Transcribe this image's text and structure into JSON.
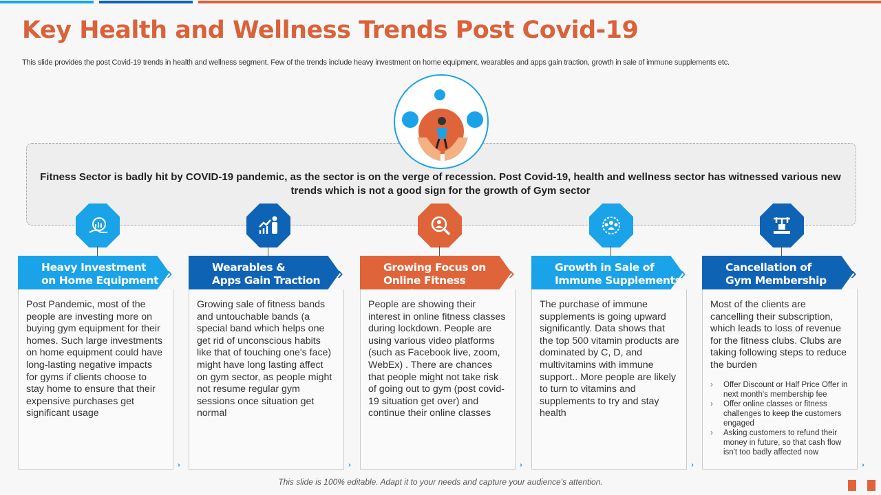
{
  "title": "Key Health and Wellness Trends Post Covid-19",
  "subtitle": "This slide provides the post Covid-19 trends in health and wellness segment. Few of the trends include heavy investment on home equipment, wearables and apps gain traction, growth in sale of immune supplements etc.",
  "center_text": "Fitness Sector is badly hit by COVID-19 pandemic, as the sector is on the verge of recession. Post Covid-19, health and wellness sector has witnessed various new trends which is not a good sign for the growth of Gym sector",
  "colors": {
    "light_blue": "#1aa3e8",
    "dark_blue": "#0f63b5",
    "orange": "#e0643a"
  },
  "trends": [
    {
      "title1": "Heavy Investment",
      "title2": "on Home Equipment",
      "icon": "hand-chart-icon",
      "color": "#1aa3e8",
      "body": "Post Pandemic, most of the people are investing more on buying gym equipment for their homes. Such large investments on home equipment could have long-lasting negative impacts for gyms if clients choose to stay home to ensure that their expensive purchases get significant usage"
    },
    {
      "title1": "Wearables &",
      "title2": "Apps Gain Traction",
      "icon": "growth-person-icon",
      "color": "#0f63b5",
      "body": "Growing sale of fitness bands and untouchable bands (a special band which helps one get rid of unconscious habits like that of touching one's face) might have long lasting affect on gym sector, as people might not resume regular gym sessions once situation get normal"
    },
    {
      "title1": "Growing Focus on",
      "title2": "Online Fitness Sessions",
      "icon": "search-person-icon",
      "color": "#e0643a",
      "body": "People are showing their interest in online fitness classes during lockdown. People are using various video platforms (such as Facebook live, zoom, WebEx) . There are chances that people might not take risk of going out to gym (post covid-19 situation get over) and continue their online classes"
    },
    {
      "title1": "Growth in Sale of",
      "title2": "Immune Supplements",
      "icon": "immune-group-icon",
      "color": "#1aa3e8",
      "body": "The purchase of immune supplements is going upward significantly. Data shows that the top 500 vitamin products are dominated by C, D, and multivitamins with immune support.. More people are likely to turn to vitamins and supplements to try and stay health"
    },
    {
      "title1": "Cancellation of",
      "title2": "Gym Membership",
      "icon": "gym-weights-icon",
      "color": "#0f63b5",
      "body": "Most of the clients are cancelling their subscription, which leads to loss of revenue for the fitness clubs. Clubs are taking following steps to reduce the burden",
      "bullets": [
        "Offer Discount or Half Price Offer in next month's membership fee",
        "Offer online classes or fitness challenges to keep the customers engaged",
        "Asking customers to refund their money in future, so that cash flow isn't too badly affected now"
      ]
    }
  ],
  "footer": "This slide is 100% editable. Adapt it to your needs and capture your audience's attention."
}
